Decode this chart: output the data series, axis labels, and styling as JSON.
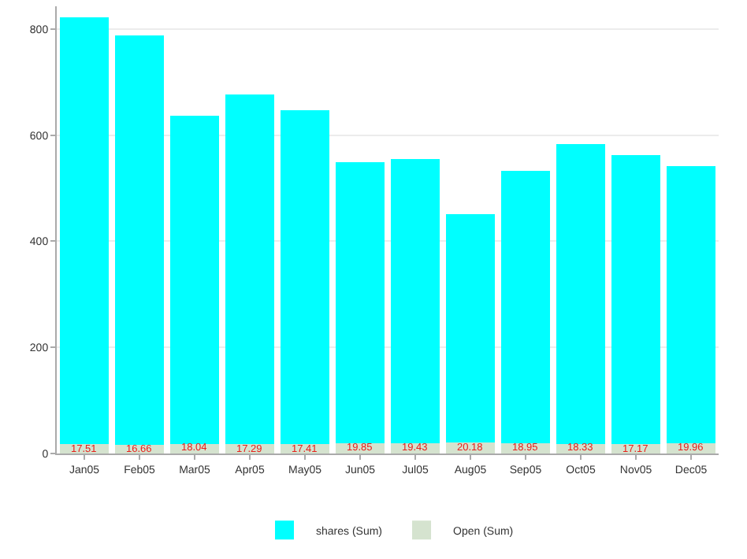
{
  "chart_data": {
    "type": "bar",
    "stacked": true,
    "categories": [
      "Jan05",
      "Feb05",
      "Mar05",
      "Apr05",
      "May05",
      "Jun05",
      "Jul05",
      "Aug05",
      "Sep05",
      "Oct05",
      "Nov05",
      "Dec05"
    ],
    "series": [
      {
        "name": "Open (Sum)",
        "color": "#d5e3cf",
        "values": [
          17.51,
          16.66,
          18.04,
          17.29,
          17.41,
          19.85,
          19.43,
          20.18,
          18.95,
          18.33,
          17.17,
          19.96
        ],
        "value_labels": [
          "17.51",
          "16.66",
          "18.04",
          "17.29",
          "17.41",
          "19.85",
          "19.43",
          "20.18",
          "18.95",
          "18.33",
          "17.17",
          "19.96"
        ]
      },
      {
        "name": "shares (Sum)",
        "color": "#00ffff",
        "values": [
          805,
          771,
          619,
          659,
          629,
          530,
          536,
          431,
          514,
          565,
          546,
          522
        ]
      }
    ],
    "ylim": [
      0,
      843
    ],
    "yticks": [
      0,
      200,
      400,
      600,
      800
    ],
    "grid": "y",
    "legend": "bottom"
  }
}
